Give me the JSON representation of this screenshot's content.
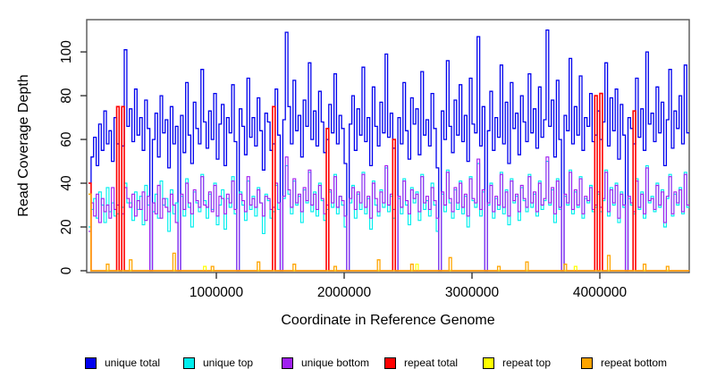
{
  "chart_data": {
    "type": "line",
    "step": true,
    "title": "",
    "xlabel": "Coordinate in Reference Genome",
    "ylabel": "Read Coverage Depth",
    "xlim": [
      0,
      4700000
    ],
    "ylim": [
      0,
      114
    ],
    "grid": false,
    "legend_position": "bottom",
    "y_ticks": [
      0,
      20,
      40,
      60,
      80,
      100
    ],
    "x_ticks": [
      {
        "value": 1000000,
        "label": "1000000"
      },
      {
        "value": 2000000,
        "label": "2000000"
      },
      {
        "value": 3000000,
        "label": "3000000"
      },
      {
        "value": 4000000,
        "label": "4000000"
      }
    ],
    "x_start": 0,
    "x_step": 20000,
    "n": 235,
    "series": [
      {
        "name": "unique total",
        "color": "#0000EE",
        "values": [
          40,
          52,
          61,
          48,
          67,
          55,
          73,
          58,
          64,
          50,
          70,
          58,
          0,
          57,
          101,
          66,
          74,
          59,
          83,
          62,
          70,
          55,
          78,
          65,
          0,
          60,
          72,
          52,
          80,
          63,
          69,
          47,
          75,
          58,
          66,
          0,
          71,
          54,
          86,
          62,
          49,
          77,
          65,
          58,
          92,
          68,
          56,
          73,
          60,
          81,
          51,
          67,
          76,
          48,
          70,
          63,
          85,
          59,
          0,
          74,
          66,
          53,
          88,
          61,
          70,
          57,
          79,
          64,
          46,
          72,
          68,
          55,
          58,
          83,
          62,
          0,
          69,
          109,
          75,
          58,
          87,
          64,
          71,
          52,
          78,
          66,
          95,
          60,
          73,
          57,
          82,
          68,
          54,
          60,
          76,
          63,
          90,
          58,
          71,
          65,
          49,
          0,
          67,
          80,
          55,
          74,
          62,
          93,
          59,
          70,
          48,
          84,
          66,
          57,
          77,
          63,
          99,
          61,
          72,
          56,
          0,
          70,
          58,
          86,
          64,
          51,
          79,
          67,
          74,
          53,
          91,
          62,
          69,
          57,
          81,
          65,
          47,
          0,
          73,
          60,
          96,
          66,
          54,
          78,
          62,
          85,
          59,
          71,
          50,
          88,
          67,
          63,
          107,
          57,
          75,
          0,
          64,
          82,
          55,
          70,
          61,
          94,
          58,
          77,
          49,
          86,
          65,
          72,
          53,
          80,
          68,
          59,
          90,
          63,
          74,
          56,
          84,
          61,
          69,
          110,
          66,
          78,
          52,
          87,
          60,
          0,
          71,
          64,
          97,
          58,
          75,
          62,
          89,
          55,
          70,
          66,
          81,
          59,
          62,
          73,
          60,
          68,
          95,
          57,
          79,
          64,
          83,
          51,
          76,
          62,
          0,
          70,
          65,
          58,
          88,
          61,
          74,
          55,
          100,
          67,
          72,
          59,
          84,
          63,
          77,
          48,
          69,
          92,
          56,
          73,
          65,
          80,
          58,
          94,
          63
        ]
      },
      {
        "name": "unique top",
        "color": "#00EEEE",
        "values": [
          20,
          28,
          33,
          24,
          36,
          30,
          22,
          38,
          27,
          31,
          25,
          26,
          0,
          29,
          40,
          31,
          31,
          23,
          36,
          28,
          34,
          21,
          39,
          30,
          0,
          27,
          35,
          24,
          41,
          30,
          33,
          18,
          37,
          26,
          31,
          0,
          34,
          25,
          42,
          29,
          20,
          36,
          31,
          27,
          44,
          32,
          24,
          35,
          28,
          40,
          21,
          30,
          37,
          19,
          33,
          29,
          43,
          26,
          0,
          36,
          30,
          23,
          41,
          28,
          34,
          25,
          38,
          31,
          17,
          35,
          32,
          24,
          27,
          39,
          28,
          0,
          33,
          48,
          35,
          26,
          41,
          30,
          34,
          22,
          37,
          31,
          45,
          27,
          36,
          25,
          40,
          32,
          23,
          28,
          36,
          29,
          44,
          26,
          34,
          30,
          20,
          0,
          31,
          39,
          24,
          35,
          28,
          45,
          26,
          33,
          19,
          41,
          30,
          25,
          37,
          29,
          47,
          27,
          34,
          24,
          0,
          33,
          26,
          42,
          30,
          21,
          38,
          31,
          36,
          23,
          44,
          28,
          32,
          25,
          40,
          30,
          18,
          0,
          35,
          27,
          46,
          31,
          24,
          37,
          28,
          41,
          26,
          34,
          20,
          43,
          32,
          29,
          49,
          25,
          36,
          0,
          30,
          40,
          24,
          33,
          28,
          45,
          26,
          37,
          21,
          42,
          31,
          34,
          23,
          38,
          32,
          27,
          44,
          29,
          35,
          25,
          41,
          28,
          32,
          50,
          30,
          37,
          22,
          42,
          28,
          0,
          34,
          30,
          46,
          26,
          36,
          29,
          43,
          24,
          33,
          31,
          39,
          27,
          29,
          35,
          27,
          32,
          46,
          25,
          38,
          30,
          40,
          22,
          36,
          29,
          0,
          33,
          30,
          26,
          42,
          28,
          36,
          24,
          48,
          31,
          34,
          27,
          40,
          29,
          37,
          20,
          33,
          44,
          25,
          35,
          30,
          38,
          26,
          45,
          29
        ]
      },
      {
        "name": "unique bottom",
        "color": "#A020F0",
        "values": [
          18,
          31,
          25,
          35,
          22,
          33,
          27,
          30,
          24,
          38,
          28,
          30,
          0,
          26,
          38,
          33,
          29,
          35,
          25,
          32,
          28,
          36,
          23,
          34,
          0,
          31,
          26,
          39,
          24,
          33,
          29,
          27,
          35,
          30,
          22,
          0,
          35,
          28,
          40,
          31,
          26,
          37,
          32,
          29,
          43,
          30,
          29,
          36,
          27,
          39,
          25,
          34,
          33,
          26,
          35,
          31,
          41,
          28,
          0,
          35,
          32,
          27,
          43,
          30,
          33,
          29,
          37,
          31,
          25,
          34,
          33,
          28,
          29,
          40,
          31,
          0,
          34,
          52,
          37,
          29,
          42,
          31,
          35,
          27,
          38,
          32,
          46,
          30,
          35,
          28,
          39,
          33,
          26,
          30,
          37,
          31,
          43,
          29,
          34,
          32,
          25,
          0,
          33,
          38,
          28,
          36,
          31,
          44,
          29,
          34,
          24,
          40,
          33,
          27,
          36,
          31,
          48,
          30,
          35,
          28,
          0,
          34,
          29,
          41,
          32,
          26,
          37,
          33,
          35,
          27,
          43,
          31,
          34,
          28,
          38,
          32,
          24,
          0,
          36,
          30,
          45,
          33,
          27,
          38,
          31,
          40,
          29,
          35,
          25,
          42,
          33,
          31,
          51,
          28,
          37,
          0,
          31,
          39,
          27,
          34,
          30,
          44,
          29,
          36,
          25,
          41,
          32,
          35,
          27,
          39,
          33,
          29,
          43,
          31,
          36,
          27,
          40,
          30,
          33,
          52,
          31,
          38,
          26,
          41,
          29,
          0,
          35,
          31,
          45,
          28,
          37,
          30,
          42,
          26,
          34,
          32,
          38,
          28,
          30,
          36,
          29,
          33,
          45,
          27,
          37,
          31,
          39,
          24,
          35,
          30,
          0,
          34,
          31,
          27,
          41,
          29,
          35,
          26,
          47,
          32,
          33,
          28,
          39,
          30,
          36,
          22,
          34,
          43,
          26,
          36,
          31,
          37,
          27,
          44,
          30
        ]
      },
      {
        "name": "repeat total",
        "color": "#FF0000",
        "base": 0,
        "spikes": {
          "0": 40,
          "11": 75,
          "13": 75,
          "72": 75,
          "93": 65,
          "119": 60,
          "198": 80,
          "200": 81,
          "213": 73
        }
      },
      {
        "name": "repeat top",
        "color": "#FFFF00",
        "base": 0,
        "spikes": {
          "0": 35,
          "45": 2,
          "128": 3,
          "190": 2
        }
      },
      {
        "name": "repeat bottom",
        "color": "#FFA500",
        "base": 0,
        "spikes": {
          "0": 35,
          "7": 3,
          "16": 5,
          "33": 8,
          "48": 2,
          "66": 4,
          "80": 3,
          "96": 2,
          "113": 5,
          "126": 3,
          "141": 6,
          "160": 2,
          "171": 4,
          "186": 3,
          "203": 7,
          "217": 3,
          "226": 2
        }
      }
    ],
    "colors": {
      "axis": "#555555",
      "tick": "#333333",
      "text": "#000000",
      "background": "#ffffff"
    }
  }
}
